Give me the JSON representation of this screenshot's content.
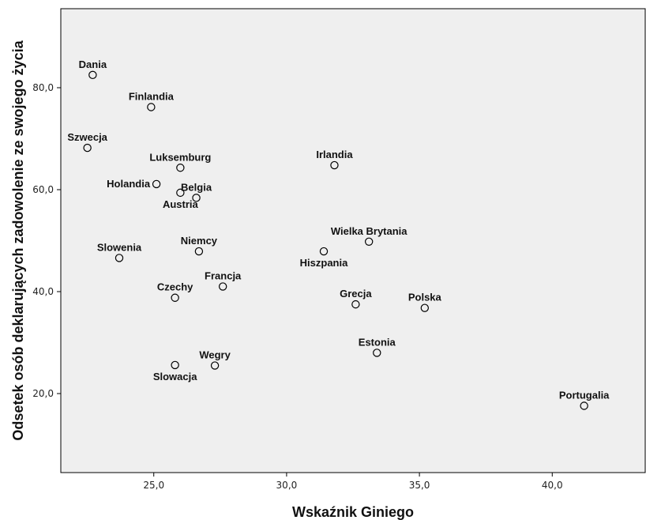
{
  "chart_data": {
    "type": "scatter",
    "xlabel": "Wskaźnik Giniego",
    "ylabel": "Odsetek osób deklarujących zadowolenie ze swojego życia",
    "xlim": [
      21.5,
      43.5
    ],
    "ylim": [
      4.5,
      95.5
    ],
    "x_ticks": [
      25,
      30,
      35,
      40
    ],
    "x_tick_labels": [
      "25,0",
      "30,0",
      "35,0",
      "40,0"
    ],
    "y_ticks": [
      20,
      40,
      60,
      80
    ],
    "y_tick_labels": [
      "20,0",
      "40,0",
      "60,0",
      "80,0"
    ],
    "grid": false,
    "plot_background": "#efefef",
    "marker_color": "#000000",
    "points": [
      {
        "label": "Dania",
        "x": 22.7,
        "y": 82.5,
        "label_pos": "above"
      },
      {
        "label": "Finlandia",
        "x": 24.9,
        "y": 76.2,
        "label_pos": "above"
      },
      {
        "label": "Szwecja",
        "x": 22.5,
        "y": 68.2,
        "label_pos": "above"
      },
      {
        "label": "Luksemburg",
        "x": 26.0,
        "y": 64.3,
        "label_pos": "above"
      },
      {
        "label": "Holandia",
        "x": 25.1,
        "y": 61.1,
        "label_pos": "left"
      },
      {
        "label": "Austria",
        "x": 26.0,
        "y": 59.4,
        "label_pos": "below"
      },
      {
        "label": "Belgia",
        "x": 26.6,
        "y": 58.4,
        "label_pos": "above"
      },
      {
        "label": "Irlandia",
        "x": 31.8,
        "y": 64.8,
        "label_pos": "above"
      },
      {
        "label": "Wielka Brytania",
        "x": 33.1,
        "y": 49.8,
        "label_pos": "above"
      },
      {
        "label": "Hiszpania",
        "x": 31.4,
        "y": 47.9,
        "label_pos": "below"
      },
      {
        "label": "Niemcy",
        "x": 26.7,
        "y": 47.9,
        "label_pos": "above"
      },
      {
        "label": "Slowenia",
        "x": 23.7,
        "y": 46.6,
        "label_pos": "above"
      },
      {
        "label": "Francja",
        "x": 27.6,
        "y": 41.0,
        "label_pos": "above"
      },
      {
        "label": "Czechy",
        "x": 25.8,
        "y": 38.8,
        "label_pos": "above"
      },
      {
        "label": "Grecja",
        "x": 32.6,
        "y": 37.5,
        "label_pos": "above"
      },
      {
        "label": "Polska",
        "x": 35.2,
        "y": 36.8,
        "label_pos": "above"
      },
      {
        "label": "Estonia",
        "x": 33.4,
        "y": 28.0,
        "label_pos": "above"
      },
      {
        "label": "Wegry",
        "x": 27.3,
        "y": 25.5,
        "label_pos": "above"
      },
      {
        "label": "Slowacja",
        "x": 25.8,
        "y": 25.6,
        "label_pos": "below"
      },
      {
        "label": "Portugalia",
        "x": 41.2,
        "y": 17.6,
        "label_pos": "above"
      }
    ]
  }
}
